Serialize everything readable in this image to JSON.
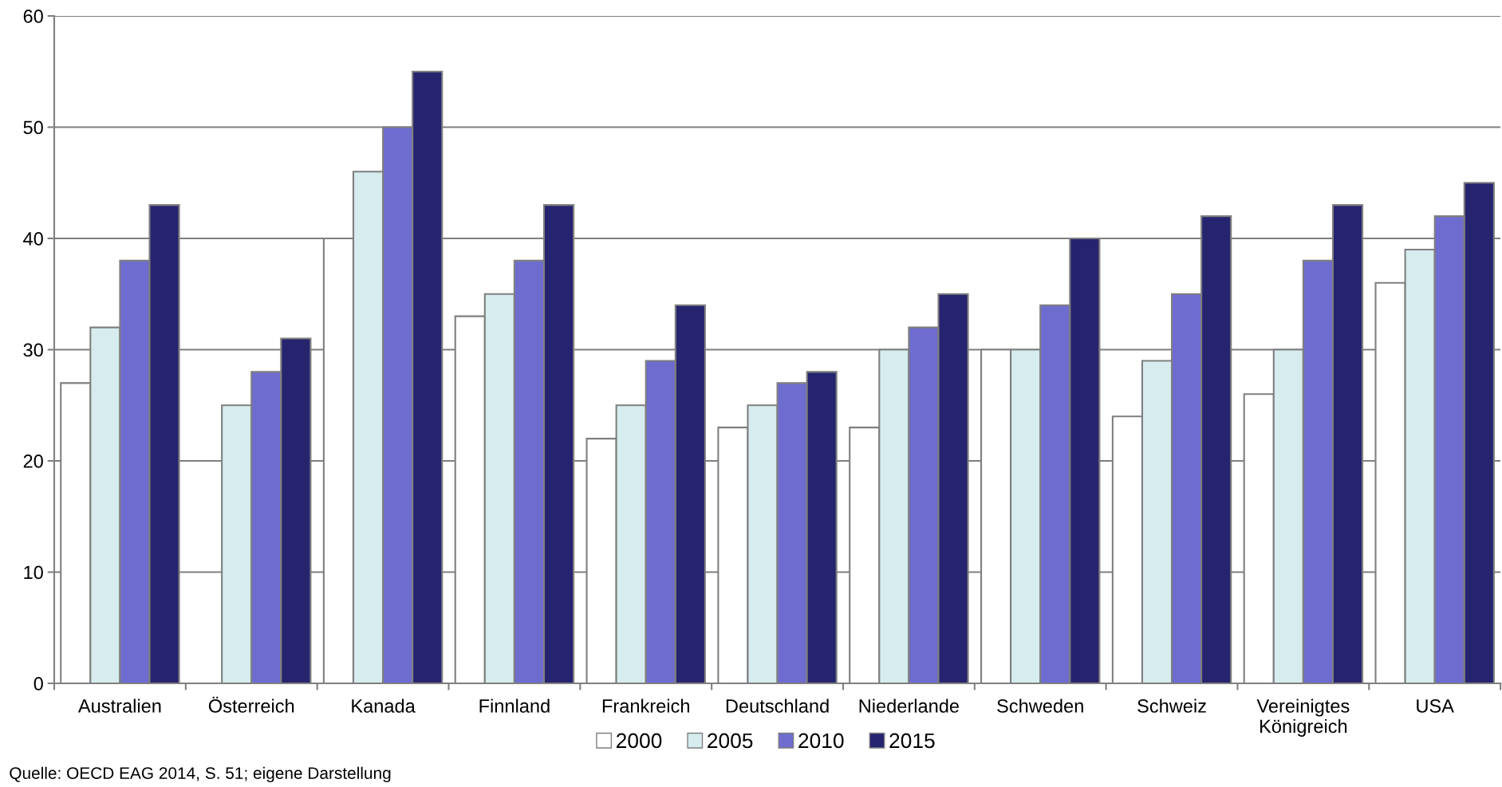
{
  "chart_data": {
    "type": "bar",
    "categories": [
      "Australien",
      "Österreich",
      "Kanada",
      "Finnland",
      "Frankreich",
      "Deutschland",
      "Niederlande",
      "Schweden",
      "Schweiz",
      "Vereinigtes\nKönigreich",
      "USA"
    ],
    "series": [
      {
        "name": "2000",
        "color": "#ffffff",
        "values": [
          27,
          null,
          40,
          33,
          22,
          23,
          23,
          30,
          24,
          26,
          36
        ]
      },
      {
        "name": "2005",
        "color": "#d6ecef",
        "values": [
          32,
          25,
          46,
          35,
          25,
          25,
          30,
          30,
          29,
          30,
          39
        ]
      },
      {
        "name": "2010",
        "color": "#6e6ccf",
        "values": [
          38,
          28,
          50,
          38,
          29,
          27,
          32,
          34,
          35,
          38,
          42
        ]
      },
      {
        "name": "2015",
        "color": "#26246f",
        "values": [
          43,
          31,
          55,
          43,
          34,
          28,
          35,
          40,
          42,
          43,
          45
        ]
      }
    ],
    "ylim": [
      0,
      60
    ],
    "yticks": [
      0,
      10,
      20,
      30,
      40,
      50,
      60
    ],
    "grid": "y",
    "legend": "bottom",
    "annotations": [
      "Quelle: OECD EAG 2014, S. 51; eigene Darstellung"
    ]
  }
}
